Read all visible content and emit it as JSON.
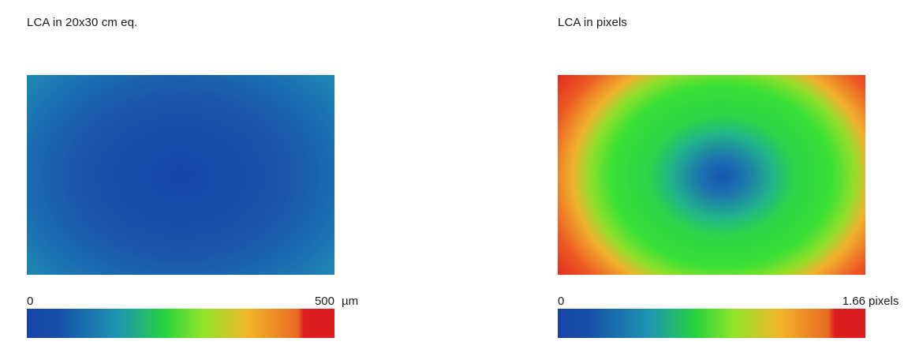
{
  "chart_data": [
    {
      "type": "heatmap",
      "title": "LCA in 20x30 cm eq.",
      "scale": {
        "min_label": "0",
        "max_label": "500",
        "unit": "µm",
        "min": 0,
        "max": 500
      },
      "colormap": [
        "#1544a8",
        "#1f8ab0",
        "#27d33c",
        "#8ee52a",
        "#f2a52a",
        "#dd1e1e"
      ],
      "field": {
        "center_value_fraction": 0.02,
        "corner_value_fraction": 0.17
      }
    },
    {
      "type": "heatmap",
      "title": "LCA in pixels",
      "scale": {
        "min_label": "0",
        "max_label": "1.66",
        "unit": "pixels",
        "min": 0,
        "max": 1.66
      },
      "colormap": [
        "#1544a8",
        "#1f8ab0",
        "#27d33c",
        "#8ee52a",
        "#f2a52a",
        "#dd1e1e"
      ],
      "field": {
        "center_value_fraction": 0.05,
        "corner_value_fraction": 1.0
      }
    }
  ]
}
